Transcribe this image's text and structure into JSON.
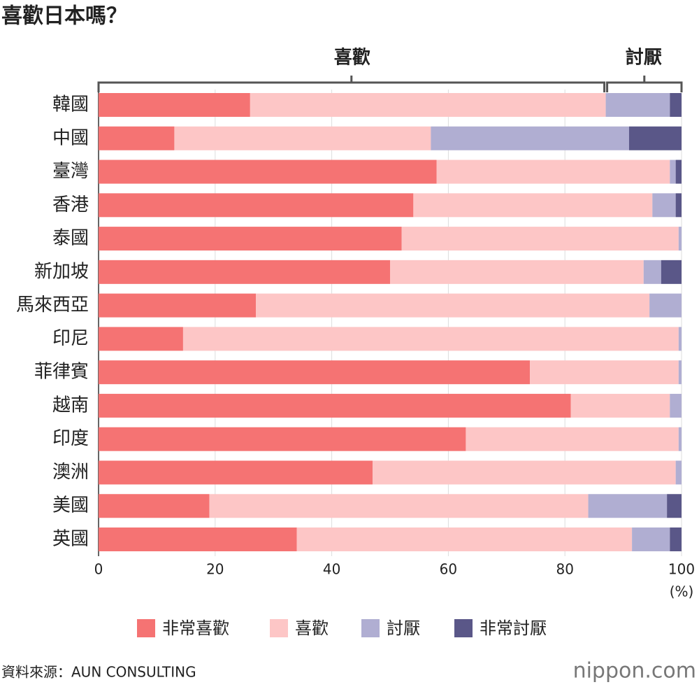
{
  "chart_data": {
    "type": "stacked-barh",
    "title": "喜歡日本嗎？",
    "annotations": [
      "喜歡",
      "討厭"
    ],
    "x_label": "(%)",
    "categories": [
      "韓國",
      "中國",
      "臺灣",
      "香港",
      "泰國",
      "新加坡",
      "馬來西亞",
      "印尼",
      "菲律賓",
      "越南",
      "印度",
      "澳洲",
      "美國",
      "英國"
    ],
    "series": [
      {
        "name": "非常喜歡",
        "color": "#f57373",
        "values": [
          26,
          13,
          58,
          54,
          52,
          50,
          27,
          14.5,
          74,
          81,
          63,
          47,
          19,
          34
        ]
      },
      {
        "name": "喜歡",
        "color": "#fdc6c6",
        "values": [
          61,
          44,
          40,
          41,
          47.5,
          43.5,
          67.5,
          85,
          25.5,
          17,
          36.5,
          52,
          65,
          57.5
        ]
      },
      {
        "name": "討厭",
        "color": "#b0aed2",
        "values": [
          11,
          34,
          1,
          4,
          0.5,
          3,
          5.5,
          0.5,
          0.5,
          2,
          0.5,
          1,
          13.5,
          6.5
        ]
      },
      {
        "name": "非常討厭",
        "color": "#5a5788",
        "values": [
          2,
          9,
          1,
          1,
          0,
          3.5,
          0,
          0,
          0,
          0,
          0,
          0,
          2.5,
          2
        ]
      }
    ],
    "xlim": [
      0,
      100
    ],
    "xticks": [
      0,
      20,
      40,
      60,
      80,
      100
    ],
    "grid": true,
    "source": "資料來源：AUN CONSULTING",
    "logo": "nippon.com"
  }
}
